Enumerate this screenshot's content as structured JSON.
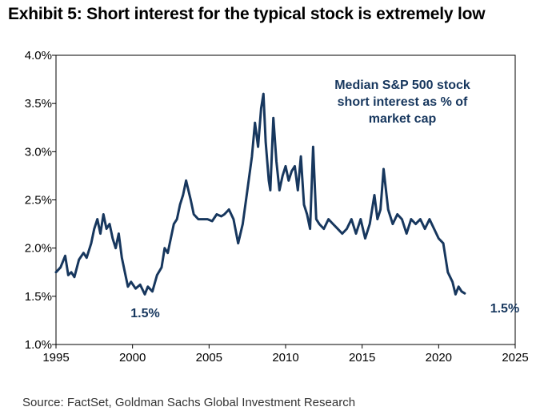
{
  "title": "Exhibit 5: Short interest for the typical stock is extremely low",
  "source": "Source: FactSet, Goldman Sachs Global Investment Research",
  "colors": {
    "line": "#17375e",
    "annotation": "#17375e",
    "axis": "#000000"
  },
  "chart_data": {
    "type": "line",
    "title": "Exhibit 5: Short interest for the typical stock is extremely low",
    "xlabel": "",
    "ylabel": "",
    "xlim": [
      1995,
      2025
    ],
    "ylim": [
      1.0,
      4.0
    ],
    "x_ticks": [
      1995,
      2000,
      2005,
      2010,
      2015,
      2020,
      2025
    ],
    "x_tick_labels": [
      "1995",
      "2000",
      "2005",
      "2010",
      "2015",
      "2020",
      "2025"
    ],
    "y_ticks": [
      1.0,
      1.5,
      2.0,
      2.5,
      3.0,
      3.5,
      4.0
    ],
    "y_tick_labels": [
      "1.0%",
      "1.5%",
      "2.0%",
      "2.5%",
      "3.0%",
      "3.5%",
      "4.0%"
    ],
    "grid": false,
    "legend": "none",
    "annotations": [
      {
        "text_lines": [
          "Median S&P 500 stock",
          "short interest as % of",
          "market cap"
        ],
        "position": "top-right"
      },
      {
        "text": "1.5%",
        "x": 2000.2,
        "y": 1.5
      },
      {
        "text": "1.5%",
        "x": 2021.6,
        "y": 1.5
      }
    ],
    "series": [
      {
        "x": [
          1995.0,
          1995.3,
          1995.6,
          1995.8,
          1996.0,
          1996.2,
          1996.5,
          1996.8,
          1997.0,
          1997.3,
          1997.5,
          1997.7,
          1997.9,
          1998.1,
          1998.3,
          1998.5,
          1998.7,
          1998.9,
          1999.1,
          1999.3,
          1999.5,
          1999.7,
          1999.9,
          2000.2,
          2000.5,
          2000.8,
          2001.0,
          2001.3,
          2001.6,
          2001.9,
          2002.1,
          2002.3,
          2002.5,
          2002.7,
          2002.9,
          2003.1,
          2003.3,
          2003.5,
          2003.8,
          2004.0,
          2004.3,
          2004.6,
          2004.9,
          2005.2,
          2005.5,
          2005.8,
          2006.0,
          2006.3,
          2006.6,
          2006.9,
          2007.2,
          2007.5,
          2007.8,
          2008.0,
          2008.2,
          2008.4,
          2008.55,
          2008.7,
          2008.9,
          2009.0,
          2009.2,
          2009.4,
          2009.6,
          2009.8,
          2010.0,
          2010.2,
          2010.4,
          2010.6,
          2010.8,
          2011.0,
          2011.2,
          2011.4,
          2011.6,
          2011.8,
          2012.0,
          2012.2,
          2012.5,
          2012.8,
          2013.1,
          2013.4,
          2013.7,
          2014.0,
          2014.3,
          2014.6,
          2014.9,
          2015.2,
          2015.5,
          2015.8,
          2016.0,
          2016.2,
          2016.4,
          2016.7,
          2017.0,
          2017.3,
          2017.6,
          2017.9,
          2018.2,
          2018.5,
          2018.8,
          2019.1,
          2019.4,
          2019.7,
          2020.0,
          2020.3,
          2020.6,
          2020.9,
          2021.1,
          2021.3,
          2021.5,
          2021.7
        ],
        "values": [
          1.75,
          1.8,
          1.92,
          1.72,
          1.75,
          1.7,
          1.88,
          1.95,
          1.9,
          2.05,
          2.2,
          2.3,
          2.15,
          2.35,
          2.2,
          2.25,
          2.1,
          2.0,
          2.15,
          1.9,
          1.75,
          1.6,
          1.65,
          1.58,
          1.62,
          1.52,
          1.6,
          1.55,
          1.72,
          1.8,
          2.0,
          1.95,
          2.1,
          2.25,
          2.3,
          2.45,
          2.55,
          2.7,
          2.5,
          2.35,
          2.3,
          2.3,
          2.3,
          2.28,
          2.35,
          2.33,
          2.35,
          2.4,
          2.3,
          2.05,
          2.25,
          2.6,
          2.95,
          3.3,
          3.05,
          3.45,
          3.6,
          3.1,
          2.7,
          2.6,
          3.35,
          2.9,
          2.6,
          2.75,
          2.85,
          2.7,
          2.8,
          2.85,
          2.6,
          2.95,
          2.45,
          2.35,
          2.2,
          3.05,
          2.3,
          2.25,
          2.2,
          2.3,
          2.25,
          2.2,
          2.15,
          2.2,
          2.3,
          2.15,
          2.3,
          2.1,
          2.25,
          2.55,
          2.3,
          2.4,
          2.82,
          2.4,
          2.25,
          2.35,
          2.3,
          2.15,
          2.3,
          2.25,
          2.3,
          2.2,
          2.3,
          2.2,
          2.1,
          2.05,
          1.75,
          1.65,
          1.52,
          1.6,
          1.55,
          1.53
        ]
      }
    ]
  }
}
